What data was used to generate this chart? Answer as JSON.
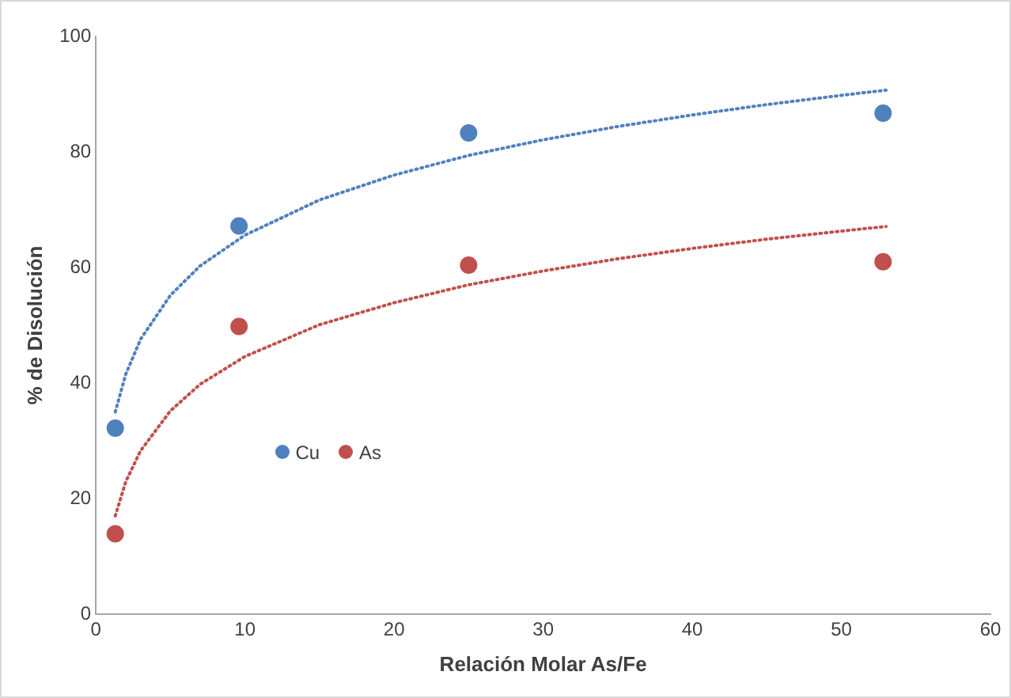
{
  "chart_data": {
    "type": "scatter",
    "xlabel": "Relación Molar As/Fe",
    "ylabel": "% de Disolución",
    "xlim": [
      0,
      60
    ],
    "xticks": [
      0,
      10,
      20,
      30,
      40,
      50,
      60
    ],
    "ylim": [
      0,
      100
    ],
    "yticks": [
      0,
      20,
      40,
      60,
      80,
      100
    ],
    "grid": false,
    "legend": "bottom left",
    "series": [
      {
        "name": "Cu",
        "color": "#4f81bd",
        "marker": "circle",
        "x": [
          1.3,
          9.6,
          25,
          52.8
        ],
        "values": [
          32.2,
          67.2,
          83.3,
          86.7
        ]
      },
      {
        "name": "As",
        "color": "#c0504d",
        "marker": "circle",
        "x": [
          1.3,
          9.6,
          25,
          52.8
        ],
        "values": [
          13.9,
          49.8,
          60.4,
          61
        ]
      },
      {
        "type": "line",
        "color": "#4f81bd",
        "marker": "none",
        "line_style": "dotted",
        "x": [
          1.3,
          2,
          3,
          5,
          7,
          10,
          15,
          20,
          25,
          30,
          35,
          40,
          45,
          50,
          53
        ],
        "values": [
          35,
          41.5,
          47.6,
          55.2,
          60.3,
          65.6,
          71.7,
          76,
          79.4,
          82.1,
          84.4,
          86.4,
          88.2,
          89.8,
          90.7
        ]
      },
      {
        "type": "line",
        "color": "#c0504d",
        "marker": "none",
        "line_style": "dotted",
        "x": [
          1.3,
          2,
          3,
          5,
          7,
          10,
          15,
          20,
          25,
          30,
          35,
          40,
          45,
          50,
          53
        ],
        "values": [
          17,
          22.9,
          28.3,
          35.2,
          39.8,
          44.6,
          50.1,
          53.9,
          57,
          59.4,
          61.5,
          63.3,
          64.9,
          66.3,
          67.1
        ]
      }
    ]
  }
}
